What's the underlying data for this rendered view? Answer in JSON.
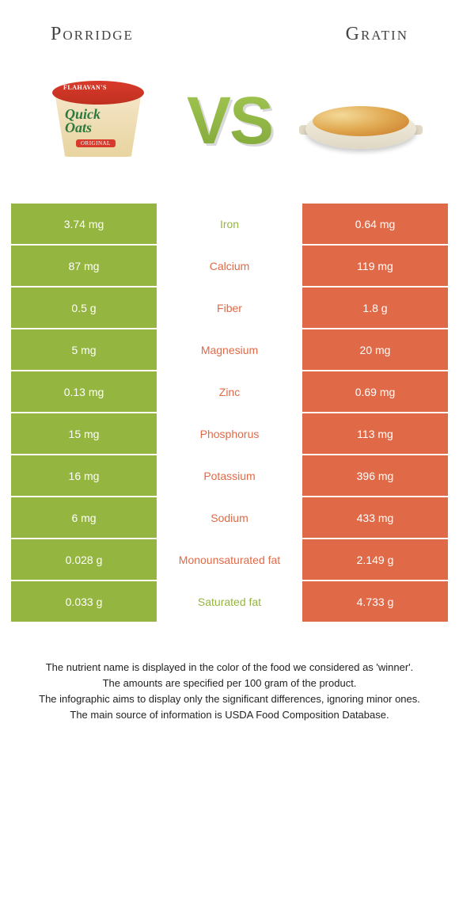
{
  "header": {
    "left_title": "Porridge",
    "right_title": "Gratin"
  },
  "vs": {
    "text": "VS"
  },
  "colors": {
    "left": "#94b53f",
    "right": "#e06a47",
    "left_text_winner": "#94b53f",
    "right_text_winner": "#e06a47"
  },
  "nutrients": [
    {
      "name": "Iron",
      "left": "3.74 mg",
      "right": "0.64 mg",
      "winner": "left"
    },
    {
      "name": "Calcium",
      "left": "87 mg",
      "right": "119 mg",
      "winner": "right"
    },
    {
      "name": "Fiber",
      "left": "0.5 g",
      "right": "1.8 g",
      "winner": "right"
    },
    {
      "name": "Magnesium",
      "left": "5 mg",
      "right": "20 mg",
      "winner": "right"
    },
    {
      "name": "Zinc",
      "left": "0.13 mg",
      "right": "0.69 mg",
      "winner": "right"
    },
    {
      "name": "Phosphorus",
      "left": "15 mg",
      "right": "113 mg",
      "winner": "right"
    },
    {
      "name": "Potassium",
      "left": "16 mg",
      "right": "396 mg",
      "winner": "right"
    },
    {
      "name": "Sodium",
      "left": "6 mg",
      "right": "433 mg",
      "winner": "right"
    },
    {
      "name": "Monounsaturated fat",
      "left": "0.028 g",
      "right": "2.149 g",
      "winner": "right"
    },
    {
      "name": "Saturated fat",
      "left": "0.033 g",
      "right": "4.733 g",
      "winner": "left"
    }
  ],
  "footer": {
    "line1": "The nutrient name is displayed in the color of the food we considered as 'winner'.",
    "line2": "The amounts are specified per 100 gram of the product.",
    "line3": "The infographic aims to display only the significant differences, ignoring minor ones.",
    "line4": "The main source of information is USDA Food Composition Database."
  },
  "product_labels": {
    "brand": "FLAHAVAN'S",
    "line1": "Quick",
    "line2": "Oats",
    "tag": "ORIGINAL"
  }
}
